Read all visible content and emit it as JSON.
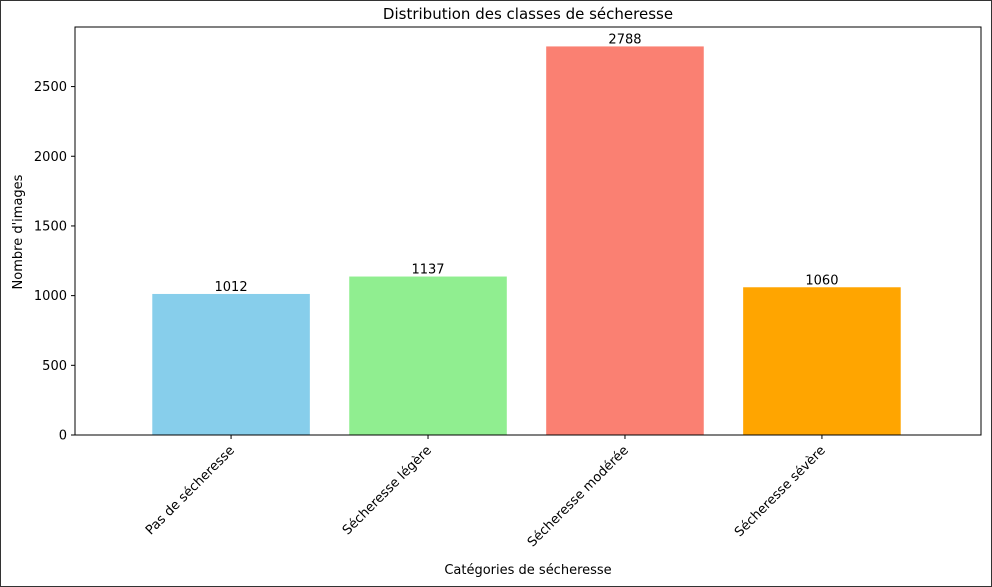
{
  "chart_data": {
    "type": "bar",
    "title": "Distribution des classes de sécheresse",
    "xlabel": "Catégories de sécheresse",
    "ylabel": "Nombre d'images",
    "categories": [
      "Pas de sécheresse",
      "Sécheresse légère",
      "Sécheresse modérée",
      "Sécheresse sévère"
    ],
    "values": [
      1012,
      1137,
      2788,
      1060
    ],
    "colors": [
      "#87ceeb",
      "#90ee90",
      "#fa8072",
      "#ffa500"
    ],
    "y_ticks": [
      0,
      500,
      1000,
      1500,
      2000,
      2500
    ],
    "y_tick_labels": [
      "0",
      "500",
      "1000",
      "1500",
      "2000",
      "2500"
    ],
    "ylim": [
      0,
      2927.4
    ],
    "grid": false,
    "legend": "none"
  }
}
